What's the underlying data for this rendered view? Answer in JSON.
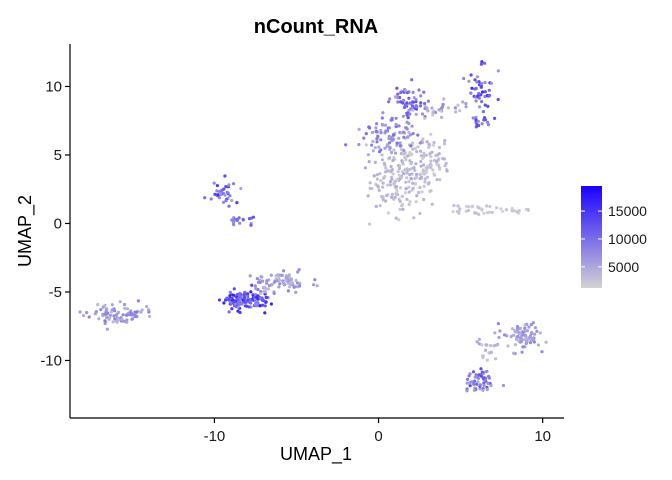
{
  "chart_data": {
    "type": "scatter",
    "title": "nCount_RNA",
    "xlabel": "UMAP_1",
    "ylabel": "UMAP_2",
    "xlim": [
      -18.8,
      11.3
    ],
    "ylim": [
      -14.2,
      13.1
    ],
    "x_ticks": [
      -10,
      0,
      10
    ],
    "x_tick_labels": [
      "-10",
      "0",
      "10"
    ],
    "y_ticks": [
      -10,
      -5,
      0,
      5,
      10
    ],
    "y_tick_labels": [
      "-10",
      "-5",
      "0",
      "5",
      "10"
    ],
    "grid": false,
    "color_scale": {
      "variable": "nCount_RNA",
      "low_color": "#d3d3d3",
      "high_color": "#1a00ff",
      "range": [
        1200,
        19500
      ],
      "ticks": [
        5000,
        10000,
        15000
      ],
      "tick_labels": [
        "5000",
        "10000",
        "15000"
      ],
      "legend_position": "right"
    },
    "clusters": [
      {
        "center": [
          -15.9,
          -6.6
        ],
        "spread": [
          1.3,
          0.5
        ],
        "n": 90,
        "value_range": [
          3500,
          9000
        ]
      },
      {
        "center": [
          -9.6,
          2.2
        ],
        "spread": [
          0.5,
          0.6
        ],
        "n": 35,
        "value_range": [
          5000,
          16000
        ]
      },
      {
        "center": [
          -8.3,
          0.3
        ],
        "spread": [
          0.6,
          0.2
        ],
        "n": 18,
        "value_range": [
          6000,
          14000
        ]
      },
      {
        "center": [
          -8.0,
          -5.6
        ],
        "spread": [
          1.0,
          0.5
        ],
        "n": 120,
        "value_range": [
          7000,
          17000
        ]
      },
      {
        "center": [
          -5.9,
          -4.3
        ],
        "spread": [
          1.1,
          0.6
        ],
        "n": 80,
        "value_range": [
          3000,
          8000
        ]
      },
      {
        "center": [
          1.2,
          3.4
        ],
        "spread": [
          1.3,
          1.7
        ],
        "n": 160,
        "value_range": [
          1500,
          5000
        ]
      },
      {
        "center": [
          3.0,
          4.5
        ],
        "spread": [
          0.9,
          1.4
        ],
        "n": 90,
        "value_range": [
          1500,
          4500
        ]
      },
      {
        "center": [
          0.7,
          6.4
        ],
        "spread": [
          1.1,
          1.0
        ],
        "n": 90,
        "value_range": [
          4000,
          10000
        ]
      },
      {
        "center": [
          1.8,
          8.8
        ],
        "spread": [
          0.8,
          0.8
        ],
        "n": 55,
        "value_range": [
          5000,
          13000
        ]
      },
      {
        "center": [
          3.6,
          8.3
        ],
        "spread": [
          1.1,
          0.4
        ],
        "n": 30,
        "value_range": [
          2000,
          8000
        ]
      },
      {
        "center": [
          6.2,
          9.6
        ],
        "spread": [
          0.5,
          1.1
        ],
        "n": 45,
        "value_range": [
          6000,
          16000
        ]
      },
      {
        "center": [
          6.3,
          7.4
        ],
        "spread": [
          0.4,
          0.4
        ],
        "n": 15,
        "value_range": [
          6000,
          14000
        ]
      },
      {
        "center": [
          6.0,
          1.0
        ],
        "spread": [
          1.0,
          0.3
        ],
        "n": 28,
        "value_range": [
          1200,
          3500
        ]
      },
      {
        "center": [
          8.3,
          1.0
        ],
        "spread": [
          0.5,
          0.12
        ],
        "n": 14,
        "value_range": [
          1200,
          3000
        ]
      },
      {
        "center": [
          8.8,
          -8.2
        ],
        "spread": [
          0.9,
          0.7
        ],
        "n": 80,
        "value_range": [
          3000,
          8000
        ]
      },
      {
        "center": [
          6.3,
          -11.5
        ],
        "spread": [
          0.6,
          0.6
        ],
        "n": 60,
        "value_range": [
          5000,
          13000
        ]
      },
      {
        "center": [
          6.6,
          -8.8
        ],
        "spread": [
          0.5,
          0.8
        ],
        "n": 20,
        "value_range": [
          2000,
          5000
        ]
      }
    ]
  }
}
